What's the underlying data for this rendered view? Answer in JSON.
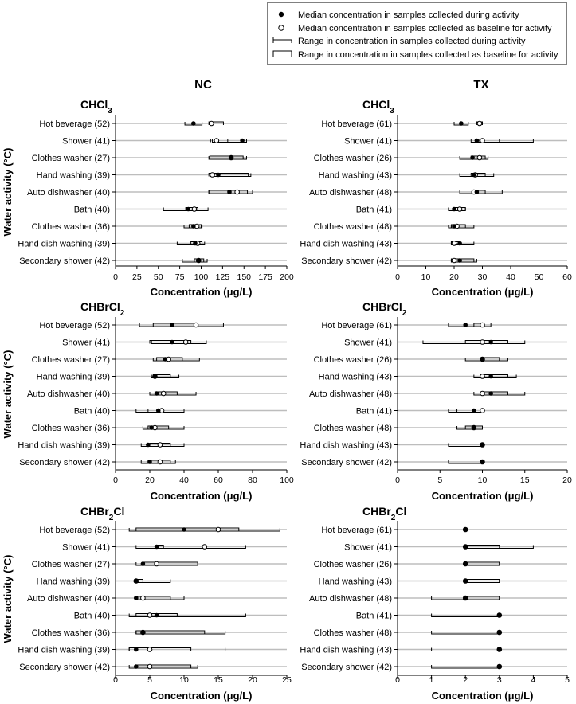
{
  "legend": {
    "items": [
      "Median concentration in samples collected during activity",
      "Median concentration in samples collected as baseline for activity",
      "Range in concentration in samples collected during activity",
      "Range in concentration in samples collected as baseline for activity"
    ]
  },
  "columns": [
    "NC",
    "TX"
  ],
  "ylabel": "Water activity (°C)",
  "chart_data": [
    {
      "id": "nc-chcl3",
      "type": "range-dot",
      "col": 0,
      "row": 0,
      "title": {
        "base": "CHCl",
        "sub": "3"
      },
      "xlabel": "Concentration (μg/L)",
      "xlim": [
        0,
        200
      ],
      "xticks": [
        "0",
        "25",
        "50",
        "75",
        "100",
        "125",
        "150",
        "175",
        "200"
      ],
      "categories": [
        "Hot beverage (52)",
        "Shower (41)",
        "Clothes washer (27)",
        "Hand washing (39)",
        "Auto dishwasher (40)",
        "Bath (40)",
        "Clothes washer (36)",
        "Hand dish washing (39)",
        "Secondary shower (42)"
      ],
      "activity_median": [
        91,
        148,
        135,
        120,
        133,
        85,
        91,
        93,
        97
      ],
      "baseline_median": [
        112,
        118,
        135,
        113,
        142,
        92,
        95,
        96,
        97
      ],
      "activity_range": [
        [
          81,
          101
        ],
        [
          113,
          153
        ],
        [
          109,
          153
        ],
        [
          111,
          158
        ],
        [
          109,
          160
        ],
        [
          56,
          108
        ],
        [
          80,
          101
        ],
        [
          72,
          104
        ],
        [
          78,
          107
        ]
      ],
      "baseline_range": [
        [
          109,
          126
        ],
        [
          111,
          131
        ],
        [
          110,
          149
        ],
        [
          109,
          155
        ],
        [
          109,
          154
        ],
        [
          82,
          96
        ],
        [
          86,
          100
        ],
        [
          88,
          101
        ],
        [
          92,
          103
        ]
      ]
    },
    {
      "id": "tx-chcl3",
      "type": "range-dot",
      "col": 1,
      "row": 0,
      "title": {
        "base": "CHCl",
        "sub": "3"
      },
      "xlabel": "Concentration (μg/L)",
      "xlim": [
        0,
        60
      ],
      "xticks": [
        "0",
        "10",
        "20",
        "30",
        "40",
        "50",
        "60"
      ],
      "categories": [
        "Hot beverage (61)",
        "Shower (41)",
        "Clothes washer (26)",
        "Hand washing (43)",
        "Auto dishwasher (48)",
        "Bath (41)",
        "Clothes washer (48)",
        "Hand dish washing (43)",
        "Secondary shower (42)"
      ],
      "activity_median": [
        22.5,
        28,
        26.5,
        27,
        28,
        20,
        20,
        22,
        22
      ],
      "baseline_median": [
        29,
        30,
        29,
        27.5,
        27,
        22,
        21,
        20,
        20
      ],
      "activity_range": [
        [
          20,
          25
        ],
        [
          26,
          48
        ],
        [
          22,
          32
        ],
        [
          22,
          34
        ],
        [
          22,
          37
        ],
        [
          18,
          24
        ],
        [
          18,
          27
        ],
        [
          19,
          27
        ],
        [
          19,
          28
        ]
      ],
      "baseline_range": [
        [
          28,
          30
        ],
        [
          29,
          36
        ],
        [
          26,
          31
        ],
        [
          26,
          31
        ],
        [
          27,
          31
        ],
        [
          20,
          24
        ],
        [
          19,
          24
        ],
        [
          19,
          22
        ],
        [
          19,
          27
        ]
      ]
    },
    {
      "id": "nc-chbrcl2",
      "type": "range-dot",
      "col": 0,
      "row": 1,
      "title": {
        "base": "CHBrCl",
        "sub": "2"
      },
      "xlabel": "Concentration (μg/L)",
      "xlim": [
        0,
        100
      ],
      "xticks": [
        "0",
        "20",
        "40",
        "60",
        "80",
        "100"
      ],
      "categories": [
        "Hot beverage (52)",
        "Shower (41)",
        "Clothes washer (27)",
        "Hand washing (39)",
        "Auto dishwasher (40)",
        "Bath (40)",
        "Clothes washer (36)",
        "Hand dish washing (39)",
        "Secondary shower (42)"
      ],
      "activity_median": [
        33,
        33,
        29,
        23,
        24,
        25,
        21,
        19,
        20
      ],
      "baseline_median": [
        47,
        41,
        31,
        23,
        28,
        27,
        23,
        26,
        26
      ],
      "activity_range": [
        [
          14,
          63
        ],
        [
          21,
          53
        ],
        [
          22,
          49
        ],
        [
          21,
          37
        ],
        [
          20,
          47
        ],
        [
          12,
          40
        ],
        [
          16,
          40
        ],
        [
          15,
          40
        ],
        [
          15,
          35
        ]
      ],
      "baseline_range": [
        [
          22,
          48
        ],
        [
          20,
          44
        ],
        [
          24,
          39
        ],
        [
          22,
          32
        ],
        [
          23,
          36
        ],
        [
          19,
          30
        ],
        [
          19,
          31
        ],
        [
          20,
          32
        ],
        [
          19,
          32
        ]
      ]
    },
    {
      "id": "tx-chbrcl2",
      "type": "range-dot",
      "col": 1,
      "row": 1,
      "title": {
        "base": "CHBrCl",
        "sub": "2"
      },
      "xlabel": "Concentration (μg/L)",
      "xlim": [
        0,
        20
      ],
      "xticks": [
        "0",
        "5",
        "10",
        "15",
        "20"
      ],
      "categories": [
        "Hot beverage (61)",
        "Shower (41)",
        "Clothes washer (26)",
        "Hand washing (43)",
        "Auto dishwasher (48)",
        "Bath (41)",
        "Clothes washer (48)",
        "Hand dish washing (43)",
        "Secondary shower (42)"
      ],
      "activity_median": [
        8,
        11,
        10,
        11,
        11,
        9,
        9,
        10,
        10
      ],
      "baseline_median": [
        10,
        10,
        10,
        10,
        10,
        10,
        9,
        10,
        10
      ],
      "activity_range": [
        [
          6,
          11
        ],
        [
          3,
          15
        ],
        [
          8,
          13
        ],
        [
          9,
          14
        ],
        [
          9,
          15
        ],
        [
          6,
          10
        ],
        [
          7,
          10
        ],
        [
          6,
          10
        ],
        [
          6,
          10
        ]
      ],
      "baseline_range": [
        [
          9,
          10
        ],
        [
          8,
          13
        ],
        [
          10,
          12
        ],
        [
          10,
          13
        ],
        [
          10,
          13
        ],
        [
          7,
          10
        ],
        [
          8,
          10
        ],
        [
          10,
          10
        ],
        [
          10,
          10
        ]
      ]
    },
    {
      "id": "nc-chbr2cl",
      "type": "range-dot",
      "col": 0,
      "row": 2,
      "title": {
        "base": "CHBr",
        "sub": "2",
        "tail": "Cl"
      },
      "xlabel": "Concentration (μg/L)",
      "xlim": [
        0,
        25
      ],
      "xticks": [
        "0",
        "5",
        "10",
        "15",
        "20",
        "25"
      ],
      "categories": [
        "Hot beverage (52)",
        "Shower (41)",
        "Clothes washer (27)",
        "Hand washing (39)",
        "Auto dishwasher (40)",
        "Bath (40)",
        "Clothes washer (36)",
        "Hand dish washing (39)",
        "Secondary shower (42)"
      ],
      "activity_median": [
        10,
        6,
        4,
        3,
        3,
        6,
        4,
        3,
        3
      ],
      "baseline_median": [
        15,
        13,
        6,
        3,
        4,
        5,
        4,
        5,
        5
      ],
      "activity_range": [
        [
          2,
          24
        ],
        [
          3,
          19
        ],
        [
          3,
          12
        ],
        [
          3,
          8
        ],
        [
          3,
          10
        ],
        [
          2,
          19
        ],
        [
          3,
          16
        ],
        [
          2,
          16
        ],
        [
          2,
          12
        ]
      ],
      "baseline_range": [
        [
          3,
          18
        ],
        [
          6,
          7
        ],
        [
          4,
          12
        ],
        [
          3,
          4
        ],
        [
          3,
          8
        ],
        [
          3,
          9
        ],
        [
          3,
          13
        ],
        [
          2,
          11
        ],
        [
          3,
          11
        ]
      ]
    },
    {
      "id": "tx-chbr2cl",
      "type": "range-dot",
      "col": 1,
      "row": 2,
      "title": {
        "base": "CHBr",
        "sub": "2",
        "tail": "Cl"
      },
      "xlabel": "Concentration (μg/L)",
      "xlim": [
        0,
        5
      ],
      "xticks": [
        "0",
        "1",
        "2",
        "3",
        "4",
        "5"
      ],
      "categories": [
        "Hot beverage (61)",
        "Shower (41)",
        "Clothes washer (26)",
        "Hand washing (43)",
        "Auto dishwasher (48)",
        "Bath (41)",
        "Clothes washer (48)",
        "Hand dish washing (43)",
        "Secondary shower (42)"
      ],
      "activity_median": [
        2,
        2,
        2,
        2,
        2,
        3,
        3,
        3,
        3
      ],
      "baseline_median": [
        2,
        2,
        2,
        2,
        2,
        3,
        3,
        3,
        3
      ],
      "activity_range": [
        [
          2,
          2
        ],
        [
          2,
          4
        ],
        [
          2,
          3
        ],
        [
          2,
          3
        ],
        [
          1,
          3
        ],
        [
          1,
          3
        ],
        [
          1,
          3
        ],
        [
          1,
          3
        ],
        [
          1,
          3
        ]
      ],
      "baseline_range": [
        [
          2,
          2
        ],
        [
          2,
          3
        ],
        [
          2,
          3
        ],
        [
          2,
          3
        ],
        [
          2,
          3
        ],
        [
          3,
          3
        ],
        [
          3,
          3
        ],
        [
          3,
          3
        ],
        [
          3,
          3
        ]
      ]
    }
  ]
}
